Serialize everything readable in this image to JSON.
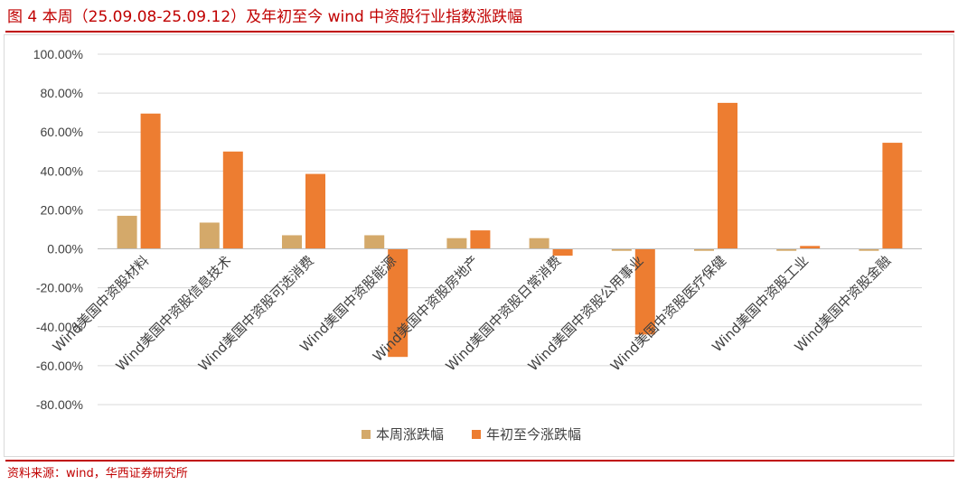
{
  "header": {
    "title": "图 4   本周（25.09.08-25.09.12）及年初至今 wind 中资股行业指数涨跌幅"
  },
  "footer": {
    "source": "资料来源：wind，华西证券研究所"
  },
  "chart_data": {
    "type": "bar",
    "title": "",
    "xlabel": "",
    "ylabel": "",
    "categories": [
      "Wind美国中资股材料",
      "Wind美国中资股信息技术",
      "Wind美国中资股可选消费",
      "Wind美国中资股能源",
      "Wind美国中资股房地产",
      "Wind美国中资股日常消费",
      "Wind美国中资股公用事业",
      "Wind美国中资股医疗保健",
      "Wind美国中资股工业",
      "Wind美国中资股金融"
    ],
    "series": [
      {
        "name": "本周涨跌幅",
        "color": "#d4a96a",
        "values": [
          17.0,
          13.5,
          7.0,
          7.0,
          5.5,
          5.5,
          -1.0,
          -1.0,
          -1.0,
          -1.0
        ]
      },
      {
        "name": "年初至今涨跌幅",
        "color": "#ed7d31",
        "values": [
          69.5,
          50.0,
          38.5,
          -55.5,
          9.5,
          -3.5,
          -44.0,
          75.0,
          1.5,
          54.5
        ]
      }
    ],
    "ylim": [
      -80,
      100
    ],
    "yticks": [
      "100.00%",
      "80.00%",
      "60.00%",
      "40.00%",
      "20.00%",
      "0.00%",
      "-20.00%",
      "-40.00%",
      "-60.00%",
      "-80.00%"
    ],
    "ytick_values": [
      100,
      80,
      60,
      40,
      20,
      0,
      -20,
      -40,
      -60,
      -80
    ],
    "grid": true,
    "legend_position": "bottom"
  }
}
